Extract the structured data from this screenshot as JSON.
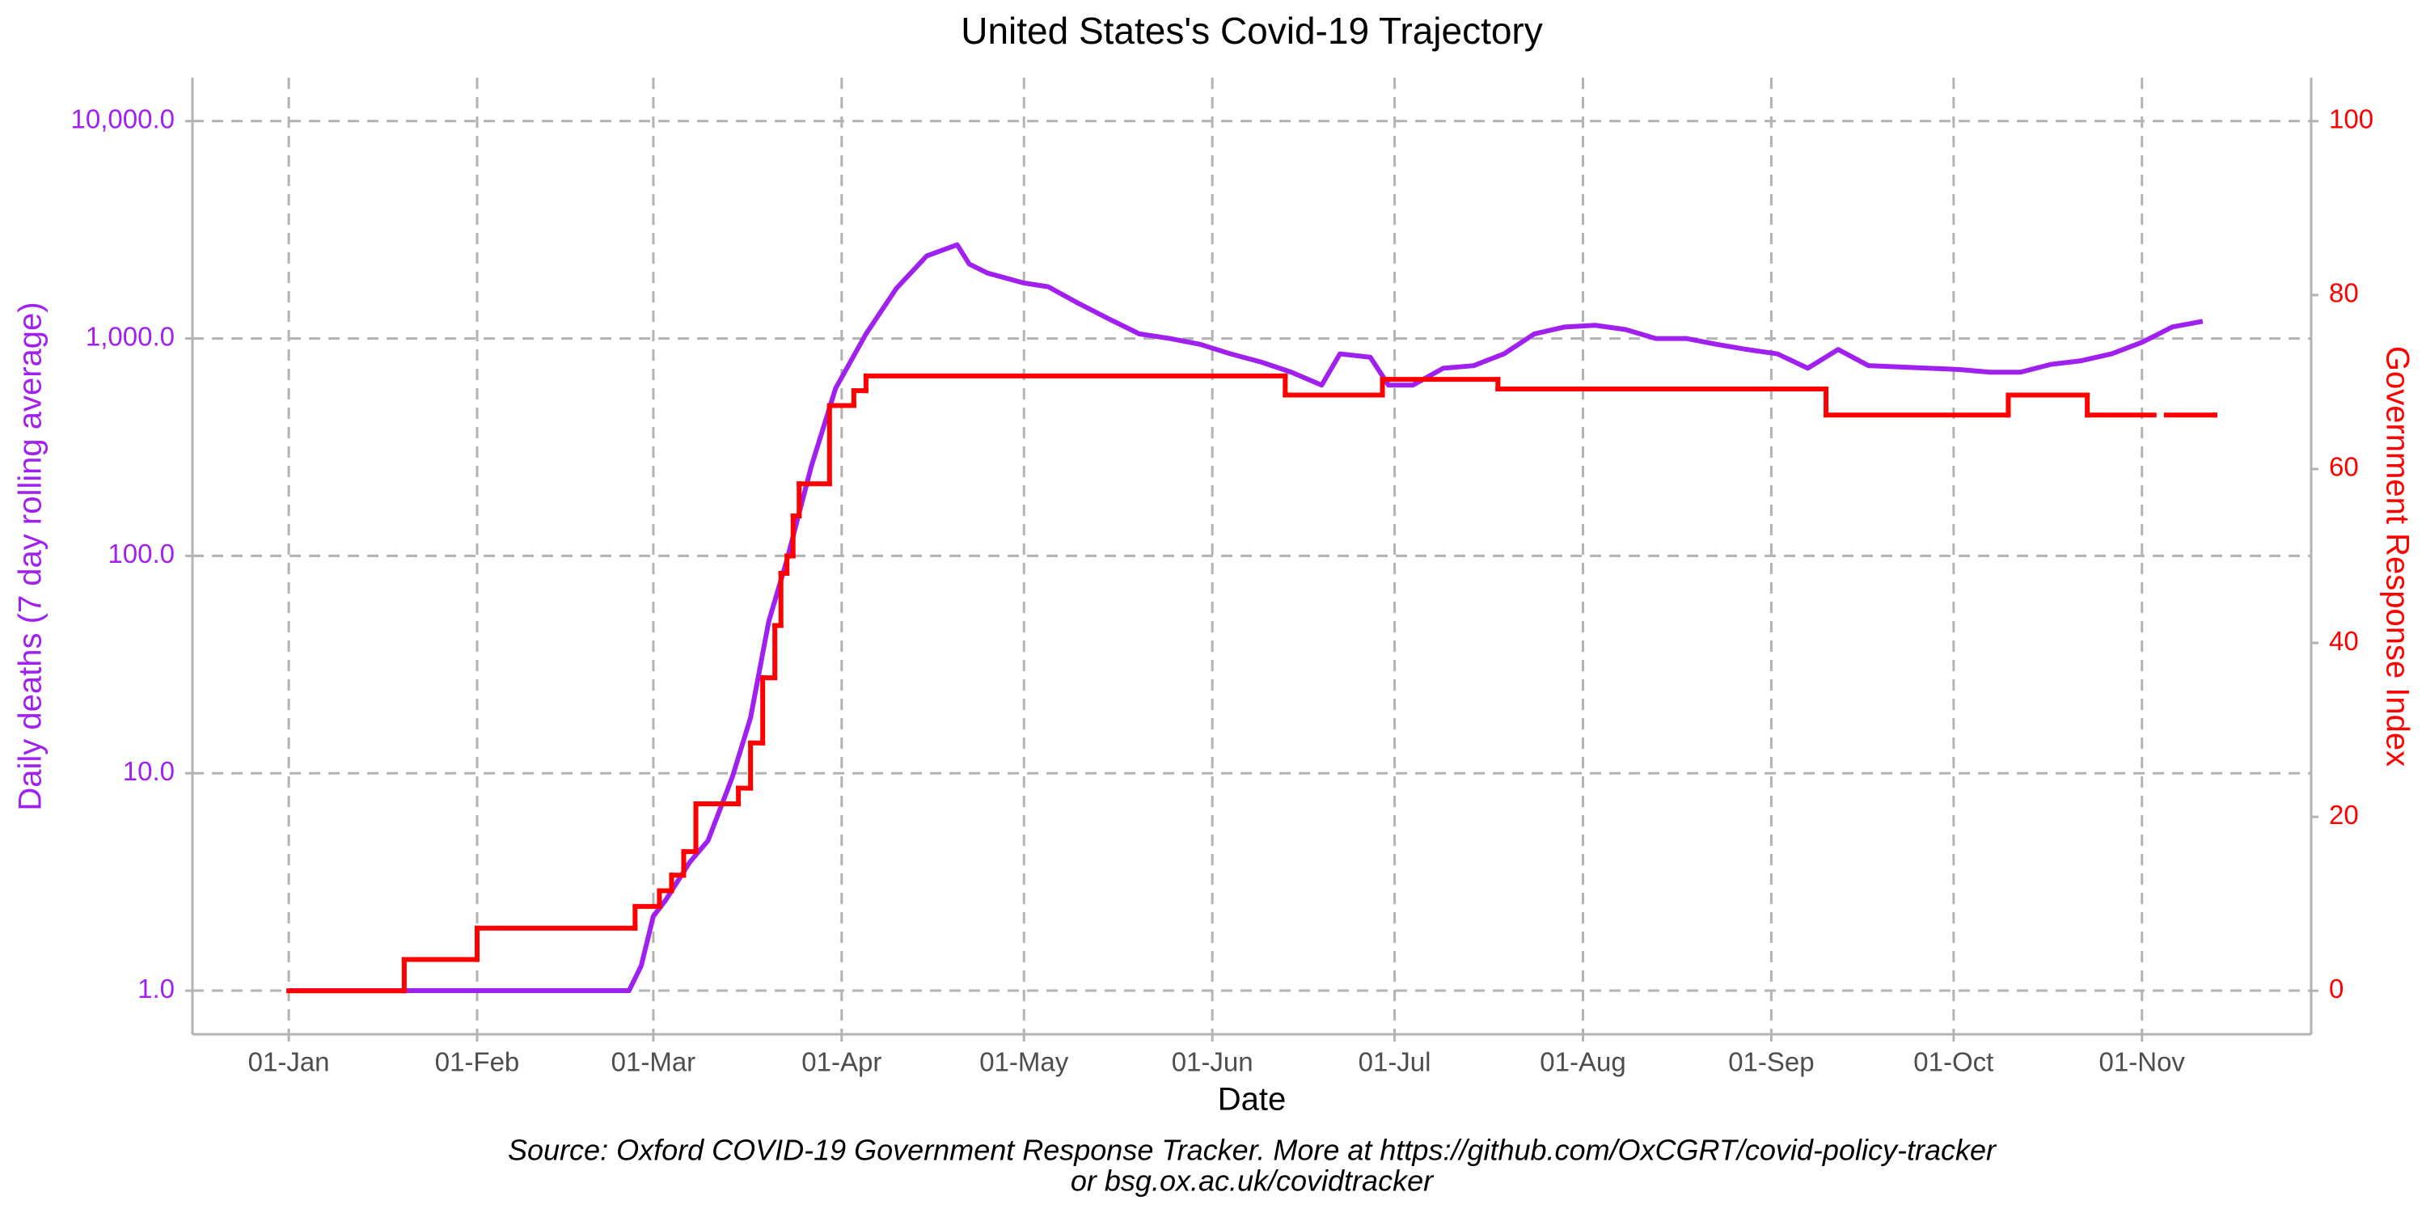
{
  "chart_data": {
    "type": "line",
    "title": "United States's Covid-19 Trajectory",
    "x_label": "Date",
    "y_label": "Daily deaths (7 day rolling average)",
    "y2_label": "Government Response Index",
    "caption": [
      "Source: Oxford COVID-19 Government Response Tracker. More at https://github.com/OxCGRT/covid-policy-tracker",
      "or bsg.ox.ac.uk/covidtracker"
    ],
    "xticks": [
      "01-Jan",
      "01-Feb",
      "01-Mar",
      "01-Apr",
      "01-May",
      "01-Jun",
      "01-Jul",
      "01-Aug",
      "01-Sep",
      "01-Oct",
      "01-Nov"
    ],
    "y_scale": "log",
    "ylim": [
      0.63,
      15850
    ],
    "yticks": [
      {
        "value": 1,
        "label": "1.0"
      },
      {
        "value": 10,
        "label": "10.0"
      },
      {
        "value": 100,
        "label": "100.0"
      },
      {
        "value": 1000,
        "label": "1,000.0"
      },
      {
        "value": 10000,
        "label": "10,000.0"
      }
    ],
    "y2lim": [
      -5,
      105
    ],
    "y2ticks": [
      0,
      20,
      40,
      60,
      80,
      100
    ],
    "grid": true,
    "series": [
      {
        "color": "#a020f0",
        "axis": "y",
        "x": [
          "01-Jan",
          "26-Feb",
          "28-Feb",
          "01-Mar",
          "03-Mar",
          "07-Mar",
          "10-Mar",
          "14-Mar",
          "17-Mar",
          "20-Mar",
          "23-Mar",
          "27-Mar",
          "31-Mar",
          "05-Apr",
          "10-Apr",
          "15-Apr",
          "20-Apr",
          "22-Apr",
          "25-Apr",
          "01-May",
          "05-May",
          "10-May",
          "15-May",
          "20-May",
          "25-May",
          "30-May",
          "04-Jun",
          "09-Jun",
          "14-Jun",
          "19-Jun",
          "22-Jun",
          "27-Jun",
          "30-Jun",
          "04-Jul",
          "09-Jul",
          "14-Jul",
          "19-Jul",
          "24-Jul",
          "29-Jul",
          "03-Aug",
          "08-Aug",
          "13-Aug",
          "18-Aug",
          "23-Aug",
          "28-Aug",
          "02-Sep",
          "07-Sep",
          "12-Sep",
          "17-Sep",
          "22-Sep",
          "27-Sep",
          "02-Oct",
          "07-Oct",
          "12-Oct",
          "17-Oct",
          "22-Oct",
          "27-Oct",
          "01-Nov",
          "06-Nov",
          "11-Nov"
        ],
        "values": [
          1,
          1,
          1.3,
          2.2,
          2.6,
          3.9,
          4.9,
          9.6,
          18,
          50,
          96,
          258,
          590,
          1050,
          1700,
          2400,
          2700,
          2200,
          2000,
          1800,
          1730,
          1450,
          1230,
          1050,
          1000,
          940,
          850,
          780,
          700,
          610,
          850,
          820,
          610,
          610,
          730,
          750,
          850,
          1050,
          1130,
          1150,
          1100,
          1000,
          1000,
          940,
          890,
          850,
          730,
          890,
          750,
          740,
          730,
          720,
          700,
          700,
          760,
          790,
          850,
          960,
          1130,
          1200
        ]
      },
      {
        "color": "#ff0000",
        "axis": "y2",
        "step": true,
        "x": [
          "01-Jan",
          "20-Jan",
          "01-Feb",
          "27-Feb",
          "02-Mar",
          "04-Mar",
          "06-Mar",
          "08-Mar",
          "15-Mar",
          "17-Mar",
          "19-Mar",
          "21-Mar",
          "22-Mar",
          "23-Mar",
          "24-Mar",
          "25-Mar",
          "30-Mar",
          "03-Apr",
          "05-Apr",
          "13-Jun",
          "29-Jun",
          "18-Jul",
          "10-Sep",
          "10-Oct",
          "23-Oct",
          "03-Nov",
          "05-Nov",
          "13-Nov"
        ],
        "values": [
          0,
          3.6,
          7.2,
          9.7,
          11.5,
          13.3,
          16,
          21.5,
          23.3,
          28.5,
          36,
          42,
          48,
          50,
          54.6,
          58.3,
          67.3,
          69,
          70.7,
          68.5,
          70.3,
          69.2,
          66.2,
          68.5,
          66.2,
          null,
          66.2,
          66.2
        ]
      }
    ]
  }
}
